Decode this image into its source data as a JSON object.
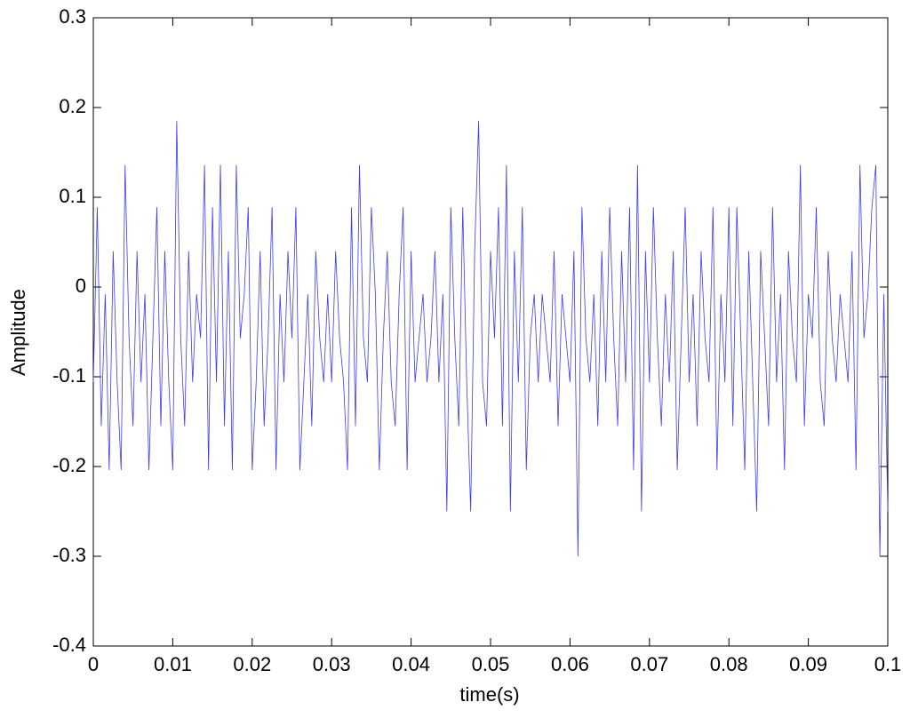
{
  "chart_data": {
    "type": "line",
    "xlabel": "time(s)",
    "ylabel": "Amplitude",
    "xlim": [
      0,
      0.1
    ],
    "ylim": [
      -0.4,
      0.3
    ],
    "xticks": [
      0,
      0.01,
      0.02,
      0.03,
      0.04,
      0.05,
      0.06,
      0.07,
      0.08,
      0.09,
      0.1
    ],
    "yticks": [
      -0.4,
      -0.3,
      -0.2,
      -0.1,
      0,
      0.1,
      0.2,
      0.3
    ],
    "grid": false,
    "x": [
      0,
      0.0005,
      0.001,
      0.0015,
      0.002,
      0.0025,
      0.003,
      0.0035,
      0.004,
      0.0045,
      0.005,
      0.0055,
      0.006,
      0.0065,
      0.007,
      0.0075,
      0.008,
      0.0085,
      0.009,
      0.0095,
      0.01,
      0.0105,
      0.011,
      0.0115,
      0.012,
      0.0125,
      0.013,
      0.0135,
      0.014,
      0.0145,
      0.015,
      0.0155,
      0.016,
      0.0165,
      0.017,
      0.0175,
      0.018,
      0.0185,
      0.019,
      0.0195,
      0.02,
      0.0205,
      0.021,
      0.0215,
      0.022,
      0.0225,
      0.023,
      0.0235,
      0.024,
      0.0245,
      0.025,
      0.0255,
      0.026,
      0.0265,
      0.027,
      0.0275,
      0.028,
      0.0285,
      0.029,
      0.0295,
      0.03,
      0.0305,
      0.031,
      0.0315,
      0.032,
      0.0325,
      0.033,
      0.0335,
      0.034,
      0.0345,
      0.035,
      0.0355,
      0.036,
      0.0365,
      0.037,
      0.0375,
      0.038,
      0.0385,
      0.039,
      0.0395,
      0.04,
      0.0405,
      0.041,
      0.0415,
      0.042,
      0.0425,
      0.043,
      0.0435,
      0.044,
      0.0445,
      0.045,
      0.0455,
      0.046,
      0.0465,
      0.047,
      0.0475,
      0.048,
      0.0485,
      0.049,
      0.0495,
      0.05,
      0.0505,
      0.051,
      0.0515,
      0.052,
      0.0525,
      0.053,
      0.0535,
      0.054,
      0.0545,
      0.055,
      0.0555,
      0.056,
      0.0565,
      0.057,
      0.0575,
      0.058,
      0.0585,
      0.059,
      0.0595,
      0.06,
      0.0605,
      0.061,
      0.0615,
      0.062,
      0.0625,
      0.063,
      0.0635,
      0.064,
      0.0645,
      0.065,
      0.0655,
      0.066,
      0.0665,
      0.067,
      0.0675,
      0.068,
      0.0685,
      0.069,
      0.0695,
      0.07,
      0.0705,
      0.071,
      0.0715,
      0.072,
      0.0725,
      0.073,
      0.0735,
      0.074,
      0.0745,
      0.075,
      0.0755,
      0.076,
      0.0765,
      0.077,
      0.0775,
      0.078,
      0.0785,
      0.079,
      0.0795,
      0.08,
      0.0805,
      0.081,
      0.0815,
      0.082,
      0.0825,
      0.083,
      0.0835,
      0.084,
      0.0845,
      0.085,
      0.0855,
      0.086,
      0.0865,
      0.087,
      0.0875,
      0.088,
      0.0885,
      0.089,
      0.0895,
      0.09,
      0.0905,
      0.091,
      0.0915,
      0.092,
      0.0925,
      0.093,
      0.0935,
      0.094,
      0.0945,
      0.095,
      0.0955,
      0.096,
      0.0965,
      0.097,
      0.0975,
      0.098,
      0.0985,
      0.099,
      0.0995,
      0.1
    ],
    "series": [
      {
        "color": "#3b3bf0",
        "values": [
          -0.106,
          0.089,
          -0.155,
          -0.008,
          -0.204,
          0.04,
          -0.106,
          -0.204,
          0.136,
          -0.057,
          -0.155,
          0.04,
          -0.106,
          -0.008,
          -0.204,
          -0.057,
          0.089,
          -0.155,
          0.04,
          -0.106,
          -0.204,
          0.185,
          -0.057,
          -0.155,
          0.04,
          -0.106,
          -0.008,
          -0.057,
          0.136,
          -0.204,
          0.089,
          -0.106,
          0.136,
          -0.155,
          0.04,
          -0.204,
          0.136,
          -0.057,
          -0.008,
          0.089,
          -0.204,
          -0.106,
          0.04,
          -0.155,
          -0.057,
          0.089,
          -0.204,
          -0.008,
          -0.106,
          0.04,
          -0.057,
          0.089,
          -0.204,
          -0.106,
          -0.008,
          -0.155,
          0.04,
          -0.057,
          -0.106,
          -0.008,
          -0.106,
          0.04,
          -0.057,
          -0.106,
          -0.204,
          0.089,
          -0.155,
          0.136,
          -0.057,
          -0.106,
          0.089,
          -0.008,
          -0.204,
          -0.057,
          0.04,
          -0.106,
          -0.155,
          -0.008,
          0.089,
          -0.204,
          0.04,
          -0.106,
          -0.057,
          -0.008,
          -0.106,
          -0.057,
          0.04,
          -0.106,
          -0.008,
          -0.25,
          0.089,
          -0.057,
          -0.155,
          0.089,
          -0.106,
          -0.25,
          0.04,
          0.185,
          -0.106,
          -0.155,
          0.04,
          -0.057,
          0.089,
          -0.155,
          0.136,
          -0.25,
          0.04,
          -0.106,
          0.089,
          -0.204,
          -0.057,
          -0.008,
          -0.106,
          -0.008,
          -0.057,
          -0.106,
          0.04,
          -0.155,
          -0.008,
          -0.057,
          -0.106,
          0.04,
          -0.3,
          0.089,
          -0.057,
          -0.106,
          -0.008,
          -0.155,
          0.04,
          -0.106,
          0.089,
          -0.057,
          -0.155,
          0.04,
          -0.106,
          0.089,
          -0.204,
          0.136,
          -0.25,
          0.04,
          -0.106,
          0.089,
          -0.057,
          -0.155,
          -0.008,
          -0.106,
          0.04,
          -0.204,
          -0.057,
          0.089,
          -0.106,
          -0.008,
          -0.155,
          0.04,
          -0.057,
          -0.106,
          0.089,
          -0.204,
          -0.008,
          -0.106,
          0.089,
          -0.155,
          0.089,
          -0.057,
          -0.204,
          0.04,
          -0.106,
          -0.25,
          0.04,
          -0.057,
          -0.155,
          0.089,
          -0.106,
          -0.008,
          -0.204,
          0.04,
          -0.057,
          -0.106,
          0.136,
          -0.155,
          -0.008,
          -0.057,
          0.089,
          -0.106,
          -0.155,
          0.04,
          -0.057,
          -0.106,
          -0.008,
          -0.057,
          -0.106,
          0.04,
          -0.204,
          0.136,
          -0.057,
          -0.008,
          0.089,
          0.136,
          -0.3,
          -0.008,
          -0.25
        ]
      }
    ]
  }
}
